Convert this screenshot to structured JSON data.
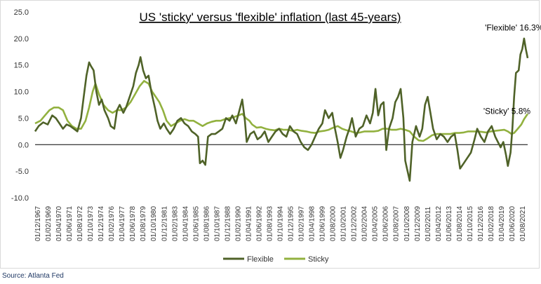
{
  "chart_data": {
    "type": "line",
    "title": "US 'sticky' versus 'flexible' inflation (last 45-years)",
    "source": "Source: Atlanta Fed",
    "ylim": [
      -10,
      25
    ],
    "yticks": [
      "25.0",
      "20.0",
      "15.0",
      "10.0",
      "5.0",
      "0.0",
      "-5.0",
      "-10.0"
    ],
    "ytick_values": [
      25,
      20,
      15,
      10,
      5,
      0,
      -5,
      -10
    ],
    "grid": false,
    "legend_position": "bottom-center",
    "x_labels": [
      "01/12/1967",
      "01/02/1969",
      "01/04/1970",
      "01/06/1971",
      "01/08/1972",
      "01/10/1973",
      "01/12/1974",
      "01/02/1976",
      "01/04/1977",
      "01/06/1978",
      "01/08/1979",
      "01/10/1980",
      "01/12/1981",
      "01/02/1983",
      "01/04/1984",
      "01/06/1985",
      "01/08/1986",
      "01/10/1987",
      "01/12/1988",
      "01/02/1990",
      "01/04/1991",
      "01/06/1992",
      "01/08/1993",
      "01/10/1994",
      "01/12/1995",
      "01/02/1997",
      "01/04/1998",
      "01/06/1999",
      "01/08/2000",
      "01/10/2001",
      "01/12/2002",
      "01/02/2004",
      "01/04/2005",
      "01/06/2006",
      "01/08/2007",
      "01/10/2008",
      "01/12/2009",
      "01/02/2011",
      "01/04/2012",
      "01/06/2013",
      "01/08/2014",
      "01/10/2015",
      "01/12/2016",
      "01/02/2018",
      "01/04/2019",
      "01/06/2020",
      "01/08/2021"
    ],
    "annotations": [
      {
        "text": "'Flexible' 16.3%",
        "x": 2021.1,
        "y": 21.5
      },
      {
        "text": "'Sticky' 5.8%",
        "x": 2020.3,
        "y": 5.8
      }
    ],
    "series": [
      {
        "name": "Flexible",
        "color": "#4f6228",
        "points": [
          [
            1967.9,
            2.5
          ],
          [
            1968.3,
            3.5
          ],
          [
            1968.8,
            4.2
          ],
          [
            1969.3,
            3.8
          ],
          [
            1969.8,
            5.5
          ],
          [
            1970.2,
            5.0
          ],
          [
            1970.6,
            4.0
          ],
          [
            1971.0,
            3.0
          ],
          [
            1971.4,
            3.8
          ],
          [
            1971.8,
            3.5
          ],
          [
            1972.2,
            3.0
          ],
          [
            1972.6,
            2.5
          ],
          [
            1973.0,
            5.0
          ],
          [
            1973.3,
            9.0
          ],
          [
            1973.6,
            13.0
          ],
          [
            1973.9,
            15.5
          ],
          [
            1974.1,
            14.8
          ],
          [
            1974.4,
            14.0
          ],
          [
            1974.7,
            10.0
          ],
          [
            1975.0,
            7.5
          ],
          [
            1975.3,
            8.5
          ],
          [
            1975.6,
            6.5
          ],
          [
            1976.0,
            5.0
          ],
          [
            1976.3,
            3.5
          ],
          [
            1976.7,
            3.0
          ],
          [
            1977.0,
            6.5
          ],
          [
            1977.3,
            7.5
          ],
          [
            1977.7,
            6.0
          ],
          [
            1978.0,
            7.0
          ],
          [
            1978.4,
            9.0
          ],
          [
            1978.8,
            11.0
          ],
          [
            1979.1,
            13.5
          ],
          [
            1979.4,
            15.0
          ],
          [
            1979.6,
            16.5
          ],
          [
            1979.9,
            14.0
          ],
          [
            1980.2,
            12.5
          ],
          [
            1980.5,
            13.0
          ],
          [
            1980.8,
            10.0
          ],
          [
            1981.2,
            7.0
          ],
          [
            1981.5,
            4.5
          ],
          [
            1981.8,
            3.0
          ],
          [
            1982.2,
            4.0
          ],
          [
            1982.5,
            3.0
          ],
          [
            1982.9,
            2.0
          ],
          [
            1983.3,
            3.0
          ],
          [
            1983.7,
            4.5
          ],
          [
            1984.1,
            5.0
          ],
          [
            1984.5,
            4.0
          ],
          [
            1984.9,
            3.5
          ],
          [
            1985.3,
            2.5
          ],
          [
            1985.7,
            2.0
          ],
          [
            1986.0,
            1.5
          ],
          [
            1986.2,
            -3.5
          ],
          [
            1986.5,
            -3.0
          ],
          [
            1986.8,
            -3.8
          ],
          [
            1987.1,
            1.5
          ],
          [
            1987.5,
            2.0
          ],
          [
            1987.9,
            2.0
          ],
          [
            1988.3,
            2.5
          ],
          [
            1988.7,
            3.0
          ],
          [
            1989.1,
            5.0
          ],
          [
            1989.5,
            4.5
          ],
          [
            1989.8,
            5.5
          ],
          [
            1990.2,
            4.0
          ],
          [
            1990.6,
            6.5
          ],
          [
            1990.9,
            8.5
          ],
          [
            1991.2,
            4.5
          ],
          [
            1991.4,
            0.5
          ],
          [
            1991.8,
            2.0
          ],
          [
            1992.2,
            2.5
          ],
          [
            1992.6,
            1.0
          ],
          [
            1993.0,
            1.5
          ],
          [
            1993.4,
            2.5
          ],
          [
            1993.8,
            0.5
          ],
          [
            1994.2,
            1.5
          ],
          [
            1994.6,
            2.5
          ],
          [
            1995.0,
            3.0
          ],
          [
            1995.4,
            2.0
          ],
          [
            1995.8,
            1.5
          ],
          [
            1996.2,
            3.5
          ],
          [
            1996.6,
            2.5
          ],
          [
            1997.0,
            2.0
          ],
          [
            1997.4,
            0.5
          ],
          [
            1997.8,
            -0.5
          ],
          [
            1998.2,
            -1.0
          ],
          [
            1998.6,
            0.0
          ],
          [
            1999.0,
            1.5
          ],
          [
            1999.4,
            3.0
          ],
          [
            1999.8,
            4.0
          ],
          [
            2000.1,
            6.5
          ],
          [
            2000.5,
            5.0
          ],
          [
            2000.9,
            6.0
          ],
          [
            2001.2,
            3.0
          ],
          [
            2001.5,
            0.5
          ],
          [
            2001.8,
            -2.5
          ],
          [
            2002.1,
            -1.0
          ],
          [
            2002.5,
            1.5
          ],
          [
            2002.8,
            3.0
          ],
          [
            2003.1,
            5.0
          ],
          [
            2003.5,
            1.5
          ],
          [
            2003.9,
            3.0
          ],
          [
            2004.3,
            3.5
          ],
          [
            2004.7,
            5.5
          ],
          [
            2005.1,
            4.0
          ],
          [
            2005.4,
            6.0
          ],
          [
            2005.7,
            10.5
          ],
          [
            2006.0,
            5.5
          ],
          [
            2006.3,
            7.5
          ],
          [
            2006.6,
            8.0
          ],
          [
            2006.9,
            -1.0
          ],
          [
            2007.2,
            3.0
          ],
          [
            2007.6,
            5.0
          ],
          [
            2007.9,
            8.0
          ],
          [
            2008.2,
            9.0
          ],
          [
            2008.5,
            10.5
          ],
          [
            2008.8,
            5.0
          ],
          [
            2009.0,
            -3.0
          ],
          [
            2009.2,
            -4.5
          ],
          [
            2009.5,
            -6.8
          ],
          [
            2009.8,
            0.5
          ],
          [
            2010.2,
            3.5
          ],
          [
            2010.6,
            1.5
          ],
          [
            2010.9,
            3.0
          ],
          [
            2011.2,
            7.5
          ],
          [
            2011.5,
            9.0
          ],
          [
            2011.8,
            6.0
          ],
          [
            2012.1,
            3.0
          ],
          [
            2012.5,
            1.0
          ],
          [
            2012.9,
            2.0
          ],
          [
            2013.3,
            1.5
          ],
          [
            2013.7,
            0.5
          ],
          [
            2014.1,
            1.5
          ],
          [
            2014.5,
            2.0
          ],
          [
            2014.8,
            -1.0
          ],
          [
            2015.1,
            -4.5
          ],
          [
            2015.5,
            -3.5
          ],
          [
            2015.9,
            -2.5
          ],
          [
            2016.3,
            -1.5
          ],
          [
            2016.7,
            1.0
          ],
          [
            2017.0,
            3.0
          ],
          [
            2017.4,
            1.5
          ],
          [
            2017.8,
            0.5
          ],
          [
            2018.2,
            2.5
          ],
          [
            2018.6,
            3.5
          ],
          [
            2019.0,
            1.5
          ],
          [
            2019.3,
            0.5
          ],
          [
            2019.6,
            -0.5
          ],
          [
            2019.9,
            0.5
          ],
          [
            2020.2,
            -2.0
          ],
          [
            2020.4,
            -4.0
          ],
          [
            2020.7,
            -1.5
          ],
          [
            2020.9,
            3.0
          ],
          [
            2021.1,
            9.0
          ],
          [
            2021.3,
            13.5
          ],
          [
            2021.6,
            14.0
          ],
          [
            2021.8,
            17.0
          ],
          [
            2022.0,
            18.0
          ],
          [
            2022.2,
            20.0
          ],
          [
            2022.4,
            18.0
          ],
          [
            2022.6,
            16.3
          ]
        ]
      },
      {
        "name": "Sticky",
        "color": "#92b13f",
        "points": [
          [
            1967.9,
            4.0
          ],
          [
            1968.5,
            4.5
          ],
          [
            1969.0,
            5.5
          ],
          [
            1969.5,
            6.5
          ],
          [
            1970.0,
            7.0
          ],
          [
            1970.5,
            7.0
          ],
          [
            1971.0,
            6.5
          ],
          [
            1971.5,
            4.5
          ],
          [
            1972.0,
            3.5
          ],
          [
            1972.5,
            3.0
          ],
          [
            1973.0,
            3.0
          ],
          [
            1973.5,
            4.5
          ],
          [
            1973.9,
            7.0
          ],
          [
            1974.3,
            10.0
          ],
          [
            1974.6,
            11.5
          ],
          [
            1975.0,
            9.5
          ],
          [
            1975.5,
            7.5
          ],
          [
            1976.0,
            6.5
          ],
          [
            1976.5,
            6.0
          ],
          [
            1977.0,
            6.5
          ],
          [
            1977.5,
            6.5
          ],
          [
            1978.0,
            7.0
          ],
          [
            1978.5,
            8.0
          ],
          [
            1979.0,
            9.5
          ],
          [
            1979.5,
            11.0
          ],
          [
            1980.0,
            12.0
          ],
          [
            1980.5,
            11.5
          ],
          [
            1980.9,
            10.0
          ],
          [
            1981.3,
            9.0
          ],
          [
            1981.7,
            8.0
          ],
          [
            1982.1,
            6.5
          ],
          [
            1982.5,
            4.5
          ],
          [
            1983.0,
            3.5
          ],
          [
            1983.5,
            4.0
          ],
          [
            1984.0,
            4.5
          ],
          [
            1984.5,
            4.8
          ],
          [
            1985.0,
            4.5
          ],
          [
            1985.5,
            4.5
          ],
          [
            1986.0,
            4.0
          ],
          [
            1986.5,
            3.5
          ],
          [
            1987.0,
            4.0
          ],
          [
            1987.5,
            4.3
          ],
          [
            1988.0,
            4.5
          ],
          [
            1988.5,
            4.5
          ],
          [
            1989.0,
            4.8
          ],
          [
            1989.5,
            5.0
          ],
          [
            1990.0,
            5.2
          ],
          [
            1990.5,
            5.5
          ],
          [
            1990.9,
            5.8
          ],
          [
            1991.3,
            5.0
          ],
          [
            1991.7,
            4.5
          ],
          [
            1992.0,
            3.8
          ],
          [
            1992.5,
            3.2
          ],
          [
            1993.0,
            3.3
          ],
          [
            1993.5,
            3.0
          ],
          [
            1994.0,
            2.8
          ],
          [
            1994.5,
            2.7
          ],
          [
            1995.0,
            3.0
          ],
          [
            1995.5,
            2.8
          ],
          [
            1996.0,
            2.8
          ],
          [
            1996.5,
            2.6
          ],
          [
            1997.0,
            2.8
          ],
          [
            1997.5,
            2.6
          ],
          [
            1998.0,
            2.5
          ],
          [
            1998.5,
            2.3
          ],
          [
            1999.0,
            2.2
          ],
          [
            1999.5,
            2.5
          ],
          [
            2000.0,
            2.6
          ],
          [
            2000.5,
            2.8
          ],
          [
            2001.0,
            3.2
          ],
          [
            2001.5,
            3.5
          ],
          [
            2002.0,
            3.0
          ],
          [
            2002.5,
            2.7
          ],
          [
            2003.0,
            2.5
          ],
          [
            2003.5,
            2.2
          ],
          [
            2004.0,
            2.3
          ],
          [
            2004.5,
            2.5
          ],
          [
            2005.0,
            2.5
          ],
          [
            2005.5,
            2.5
          ],
          [
            2006.0,
            2.6
          ],
          [
            2006.5,
            3.0
          ],
          [
            2007.0,
            3.0
          ],
          [
            2007.5,
            2.8
          ],
          [
            2008.0,
            2.8
          ],
          [
            2008.5,
            3.0
          ],
          [
            2009.0,
            2.8
          ],
          [
            2009.5,
            2.5
          ],
          [
            2010.0,
            1.5
          ],
          [
            2010.5,
            0.8
          ],
          [
            2011.0,
            0.7
          ],
          [
            2011.5,
            1.2
          ],
          [
            2012.0,
            1.8
          ],
          [
            2012.5,
            2.0
          ],
          [
            2013.0,
            2.0
          ],
          [
            2013.5,
            2.0
          ],
          [
            2014.0,
            2.0
          ],
          [
            2014.5,
            2.2
          ],
          [
            2015.0,
            2.2
          ],
          [
            2015.5,
            2.3
          ],
          [
            2016.0,
            2.5
          ],
          [
            2016.5,
            2.5
          ],
          [
            2017.0,
            2.5
          ],
          [
            2017.5,
            2.4
          ],
          [
            2018.0,
            2.3
          ],
          [
            2018.5,
            2.5
          ],
          [
            2019.0,
            2.6
          ],
          [
            2019.5,
            2.7
          ],
          [
            2020.0,
            2.8
          ],
          [
            2020.4,
            2.5
          ],
          [
            2020.8,
            2.0
          ],
          [
            2021.1,
            2.2
          ],
          [
            2021.5,
            3.0
          ],
          [
            2021.9,
            3.8
          ],
          [
            2022.2,
            4.8
          ],
          [
            2022.6,
            5.8
          ]
        ]
      }
    ]
  }
}
